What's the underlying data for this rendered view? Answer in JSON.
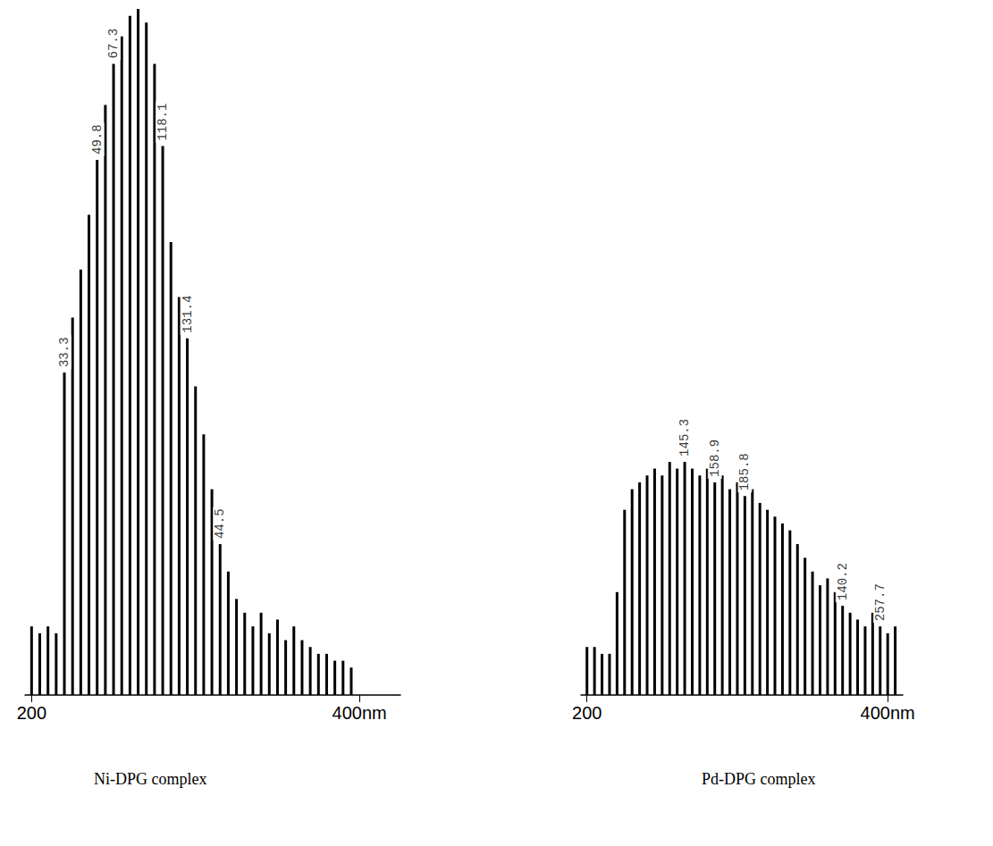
{
  "chart_data": [
    {
      "type": "bar",
      "title": "Ni-DPG complex",
      "x": [
        200,
        205,
        210,
        215,
        220,
        225,
        230,
        235,
        240,
        245,
        250,
        255,
        260,
        265,
        270,
        275,
        280,
        285,
        290,
        295,
        300,
        305,
        310,
        315,
        320,
        325,
        330,
        335,
        340,
        345,
        350,
        355,
        360,
        365,
        370,
        375,
        380,
        385,
        390,
        395
      ],
      "values": [
        10,
        9,
        10,
        9,
        47,
        55,
        62,
        70,
        78,
        86,
        92,
        96,
        99,
        100,
        98,
        92,
        80,
        66,
        58,
        52,
        45,
        38,
        30,
        22,
        18,
        14,
        12,
        10,
        12,
        9,
        11,
        8,
        10,
        8,
        7,
        6,
        6,
        5,
        5,
        4
      ],
      "color": "#000000",
      "xlim": [
        196,
        425
      ],
      "xticks": [
        200,
        {
          "value": 400,
          "label": "400nm"
        }
      ],
      "ylim": [
        0,
        100
      ],
      "yticks": [],
      "grid": false,
      "tick_labels": "x",
      "annotations": [
        {
          "text": "33.3",
          "x": 220
        },
        {
          "text": "49.8",
          "x": 240
        },
        {
          "text": "67.3",
          "x": 250
        },
        {
          "text": "118.1",
          "x": 280
        },
        {
          "text": "131.4",
          "x": 295
        },
        {
          "text": "44.5",
          "x": 315
        }
      ]
    },
    {
      "type": "bar",
      "title": "Pd-DPG complex",
      "x": [
        200,
        205,
        210,
        215,
        220,
        225,
        230,
        235,
        240,
        245,
        250,
        255,
        260,
        265,
        270,
        275,
        280,
        285,
        290,
        295,
        300,
        305,
        310,
        315,
        320,
        325,
        330,
        335,
        340,
        345,
        350,
        355,
        360,
        365,
        370,
        375,
        380,
        385,
        390,
        395,
        400,
        405
      ],
      "values": [
        7,
        7,
        6,
        6,
        15,
        27,
        30,
        31,
        32,
        33,
        32,
        34,
        33,
        34,
        33,
        32,
        33,
        31,
        32,
        30,
        31,
        29,
        30,
        28,
        27,
        26,
        25,
        24,
        22,
        20,
        18,
        16,
        17,
        15,
        13,
        12,
        11,
        10,
        12,
        10,
        9,
        10
      ],
      "color": "#000000",
      "xlim": [
        196,
        410
      ],
      "xticks": [
        200,
        {
          "value": 400,
          "label": "400nm"
        }
      ],
      "ylim": [
        0,
        100
      ],
      "yticks": [],
      "grid": false,
      "tick_labels": "x",
      "annotations": [
        {
          "text": "145.3",
          "x": 265
        },
        {
          "text": "158.9",
          "x": 285
        },
        {
          "text": "185.8",
          "x": 305
        },
        {
          "text": "140.2",
          "x": 370
        },
        {
          "text": "257.7",
          "x": 395
        }
      ]
    }
  ]
}
